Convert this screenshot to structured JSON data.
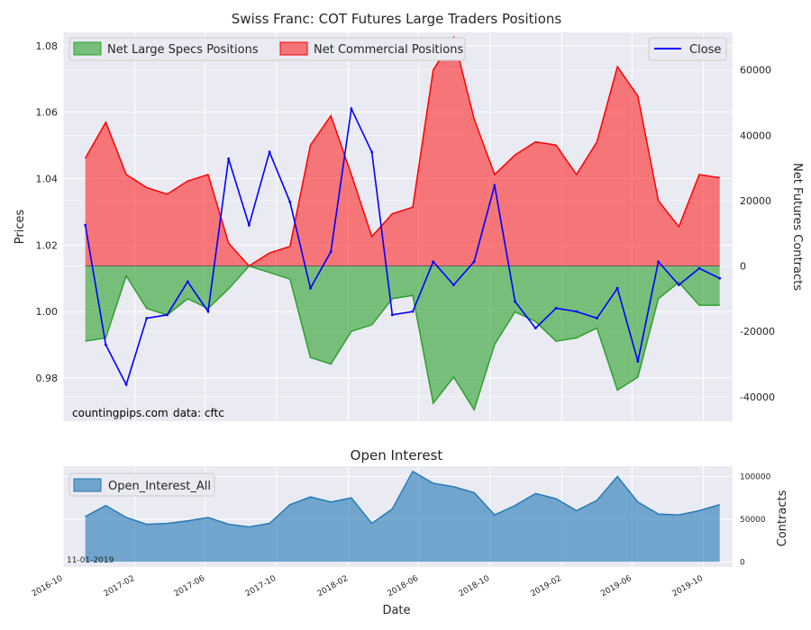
{
  "chart_data": [
    {
      "type": "area",
      "title": "Swiss Franc: COT Futures Large Traders Positions",
      "ylabel_left": "Prices",
      "ylabel_right": "Net Futures Contracts",
      "left_ticks": [
        "0.98",
        "1.00",
        "1.02",
        "1.04",
        "1.06",
        "1.08"
      ],
      "right_ticks": [
        "-40000",
        "-20000",
        "0",
        "20000",
        "40000",
        "60000"
      ],
      "ylim_left": [
        0.967,
        1.084
      ],
      "ylim_right": [
        -47500,
        71500
      ],
      "x_range": [
        "2016-10-01",
        "2019-11-20"
      ],
      "legend": {
        "specs": "Net Large Specs Positions",
        "commercial": "Net Commercial Positions",
        "close": "Close"
      },
      "footnote": {
        "source": "countingpips.com",
        "data": "data: cftc"
      },
      "colors": {
        "specs": "#2ca02c",
        "commercial": "#ff0000",
        "close": "#0000ff"
      },
      "series_dates": [
        "2016-11-08",
        "2016-12-13",
        "2017-01-17",
        "2017-02-21",
        "2017-03-28",
        "2017-05-02",
        "2017-06-06",
        "2017-07-11",
        "2017-08-15",
        "2017-09-19",
        "2017-10-24",
        "2017-11-28",
        "2018-01-02",
        "2018-02-06",
        "2018-03-13",
        "2018-04-17",
        "2018-05-22",
        "2018-06-26",
        "2018-07-31",
        "2018-09-04",
        "2018-10-09",
        "2018-11-13",
        "2018-12-18",
        "2019-01-22",
        "2019-02-26",
        "2019-04-02",
        "2019-05-07",
        "2019-06-11",
        "2019-07-16",
        "2019-08-20",
        "2019-09-24",
        "2019-10-29"
      ],
      "series": [
        {
          "name": "Net Large Specs Positions",
          "values": [
            -23000,
            -22000,
            -3000,
            -13000,
            -15000,
            -10000,
            -13000,
            -7000,
            0,
            -2000,
            -4000,
            -28000,
            -30000,
            -20000,
            -18000,
            -10000,
            -9000,
            -42000,
            -34000,
            -44000,
            -24000,
            -14000,
            -17000,
            -23000,
            -22000,
            -19000,
            -38000,
            -34000,
            -10000,
            -5000,
            -12000,
            -12000
          ]
        },
        {
          "name": "Net Commercial Positions",
          "values": [
            33000,
            44000,
            28000,
            24000,
            22000,
            26000,
            28000,
            7000,
            0,
            4000,
            6000,
            37000,
            46000,
            28000,
            9000,
            16000,
            18000,
            60000,
            70000,
            45000,
            28000,
            34000,
            38000,
            37000,
            28000,
            38000,
            61000,
            52000,
            20000,
            12000,
            28000,
            27000
          ]
        },
        {
          "name": "Close",
          "values": [
            1.026,
            0.99,
            0.978,
            0.998,
            0.999,
            1.009,
            1.0,
            1.046,
            1.026,
            1.048,
            1.033,
            1.007,
            1.018,
            1.061,
            1.048,
            0.999,
            1.0,
            1.015,
            1.008,
            1.015,
            1.038,
            1.003,
            0.995,
            1.001,
            1.0,
            0.998,
            1.007,
            0.985,
            1.015,
            1.008,
            1.013,
            1.01
          ]
        }
      ]
    },
    {
      "type": "area",
      "title": "Open Interest",
      "ylabel": "Contracts",
      "right_ticks": [
        "0",
        "50000",
        "100000"
      ],
      "ylim": [
        -6000,
        112000
      ],
      "legend": {
        "oi": "Open_Interest_All"
      },
      "footnote": "11-01-2019",
      "x_tick_labels": [
        "2016-10",
        "2017-02",
        "2017-06",
        "2017-10",
        "2018-02",
        "2018-06",
        "2018-10",
        "2019-02",
        "2019-06",
        "2019-10"
      ],
      "xlabel": "Date",
      "colors": {
        "oi": "#1f77b4"
      },
      "series": [
        {
          "name": "Open_Interest_All",
          "values": [
            53000,
            66000,
            52000,
            44000,
            45000,
            48000,
            52000,
            44000,
            41000,
            45000,
            67000,
            76000,
            70000,
            75000,
            45000,
            62000,
            106000,
            92000,
            88000,
            81000,
            55000,
            66000,
            80000,
            74000,
            60000,
            72000,
            100000,
            70000,
            56000,
            55000,
            60000,
            67000
          ]
        }
      ]
    }
  ]
}
